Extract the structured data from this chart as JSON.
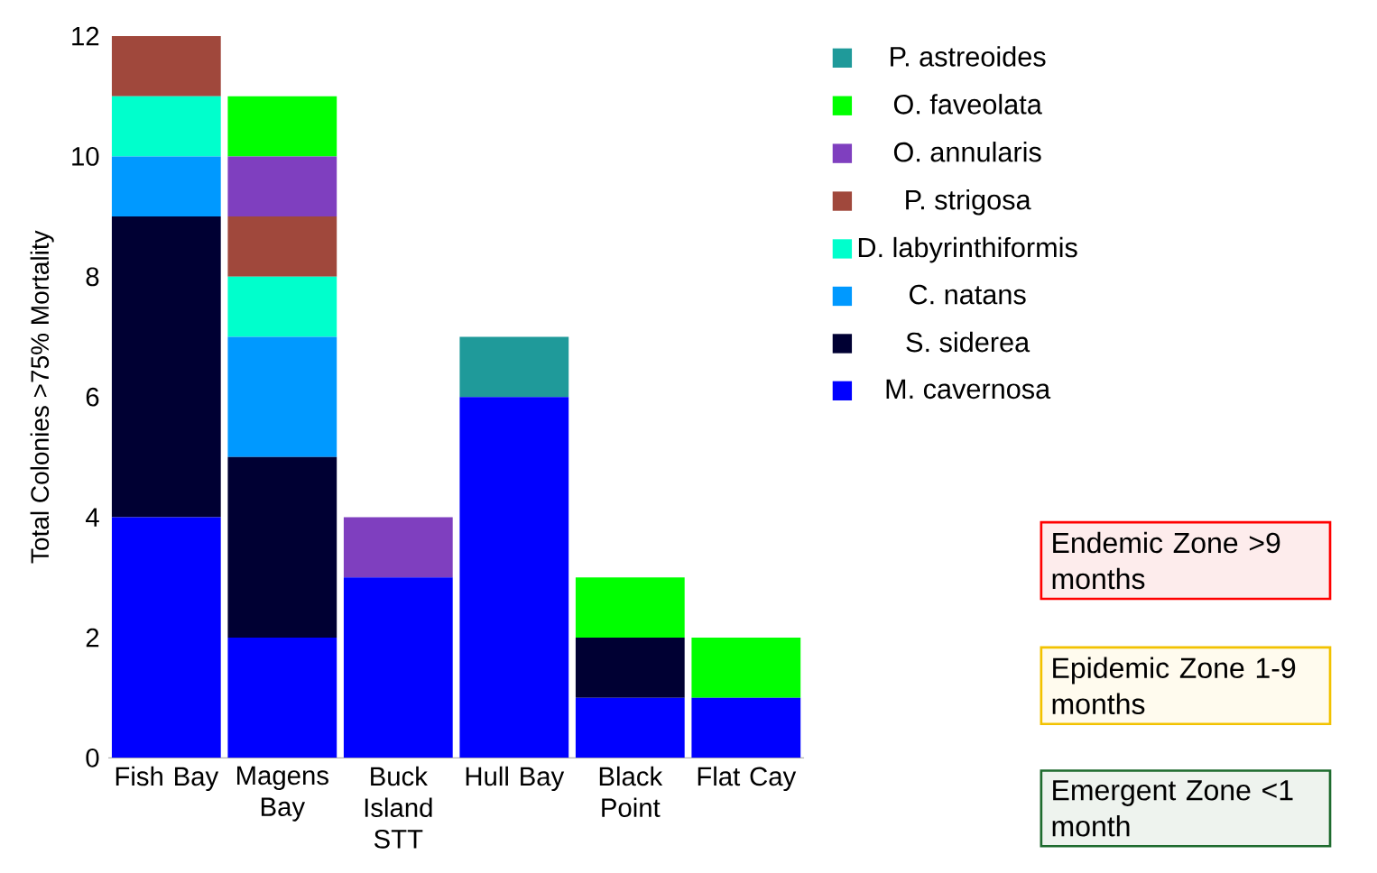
{
  "chart_data": {
    "type": "bar",
    "stacked": true,
    "ylabel": "Total Colonies >75% Mortality",
    "categories": [
      "Fish Bay",
      "Magens Bay",
      "Buck Island STT",
      "Hull Bay",
      "Black Point",
      "Flat Cay"
    ],
    "series": [
      {
        "name": "M. cavernosa",
        "color": "#0000ff",
        "values": [
          4,
          2,
          3,
          6,
          1,
          1
        ]
      },
      {
        "name": "S. siderea",
        "color": "#000033",
        "values": [
          5,
          3,
          0,
          0,
          1,
          0
        ]
      },
      {
        "name": "C. natans",
        "color": "#0099ff",
        "values": [
          1,
          2,
          0,
          0,
          0,
          0
        ]
      },
      {
        "name": "D. labyrinthiformis",
        "color": "#00ffcc",
        "values": [
          1,
          1,
          0,
          0,
          0,
          0
        ]
      },
      {
        "name": "P. strigosa",
        "color": "#a0483c",
        "values": [
          1,
          1,
          0,
          0,
          0,
          0
        ]
      },
      {
        "name": "O. annularis",
        "color": "#7f3fbf",
        "values": [
          0,
          1,
          1,
          0,
          0,
          0
        ]
      },
      {
        "name": "O. faveolata",
        "color": "#00ff00",
        "values": [
          0,
          1,
          0,
          0,
          1,
          1
        ]
      },
      {
        "name": "P. astreoides",
        "color": "#1f9a9a",
        "values": [
          0,
          0,
          0,
          1,
          0,
          0
        ]
      }
    ],
    "ylim": [
      0,
      12
    ],
    "yticks": [
      0,
      2,
      4,
      6,
      8,
      10,
      12
    ],
    "legend": "right",
    "annotations": [
      "Endemic Zone >9 months",
      "Epidemic Zone 1-9 months",
      "Emergent Zone <1 month"
    ]
  }
}
